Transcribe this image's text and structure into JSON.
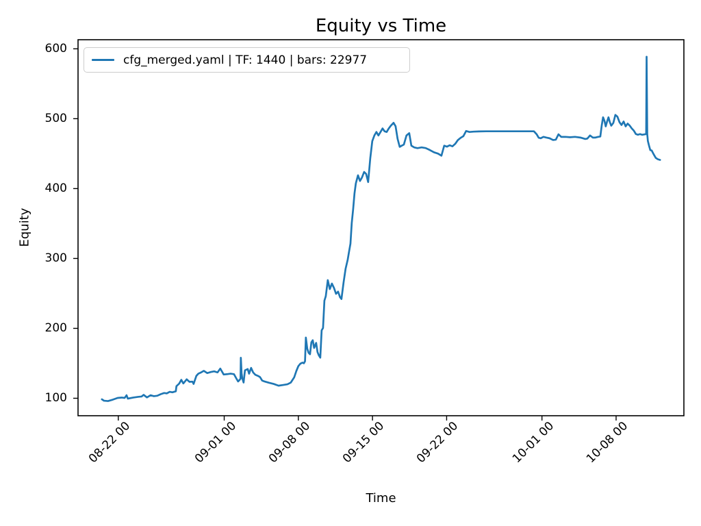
{
  "figure": {
    "title": "Equity vs Time"
  },
  "colors": {
    "line": "#1f77b4",
    "axis": "#000000",
    "text": "#000000",
    "legend_border": "#cccccc",
    "background": "#ffffff"
  },
  "chart_data": {
    "type": "line",
    "title": "Equity vs Time",
    "xlabel": "Time",
    "ylabel": "Equity",
    "x_unit": "days since 08-22 00:00",
    "xlim": [
      -3.8,
      53.4
    ],
    "ylim": [
      75,
      613
    ],
    "grid": false,
    "legend": {
      "location": "upper left",
      "entries": [
        {
          "label": "cfg_merged.yaml | TF: 1440 | bars: 22977",
          "color": "#1f77b4"
        }
      ]
    },
    "x_ticks": {
      "days": [
        0,
        10,
        17,
        24,
        31,
        40,
        47
      ],
      "labels": [
        "08-22 00",
        "09-01 00",
        "09-08 00",
        "09-15 00",
        "09-22 00",
        "10-01 00",
        "10-08 00"
      ]
    },
    "y_ticks": [
      100,
      200,
      300,
      400,
      500,
      600
    ],
    "series": [
      {
        "name": "cfg_merged.yaml | TF: 1440 | bars: 22977",
        "color": "#1f77b4",
        "line_width": 2.7,
        "points": [
          [
            -1.55,
            98.5
          ],
          [
            -1.35,
            96.5
          ],
          [
            -0.97,
            96
          ],
          [
            -0.52,
            98
          ],
          [
            -0.06,
            100.5
          ],
          [
            0.32,
            101
          ],
          [
            0.6,
            100.5
          ],
          [
            0.78,
            104.3
          ],
          [
            0.9,
            99.5
          ],
          [
            1.42,
            101
          ],
          [
            1.87,
            102
          ],
          [
            2.2,
            102.5
          ],
          [
            2.39,
            104.9
          ],
          [
            2.71,
            101.2
          ],
          [
            3.04,
            104.3
          ],
          [
            3.36,
            103
          ],
          [
            3.68,
            103.6
          ],
          [
            4.01,
            105.9
          ],
          [
            4.33,
            107.5
          ],
          [
            4.59,
            107
          ],
          [
            4.85,
            109.2
          ],
          [
            5.11,
            108.5
          ],
          [
            5.43,
            110
          ],
          [
            5.49,
            117.3
          ],
          [
            5.75,
            121
          ],
          [
            5.95,
            126.4
          ],
          [
            6.14,
            121.2
          ],
          [
            6.46,
            127.1
          ],
          [
            6.72,
            123.5
          ],
          [
            7,
            123.8
          ],
          [
            7.11,
            120.5
          ],
          [
            7.37,
            132
          ],
          [
            7.56,
            135.2
          ],
          [
            7.82,
            137
          ],
          [
            8.08,
            139.2
          ],
          [
            8.4,
            136
          ],
          [
            8.73,
            137.5
          ],
          [
            9.05,
            138.5
          ],
          [
            9.37,
            137
          ],
          [
            9.63,
            142.5
          ],
          [
            9.95,
            134
          ],
          [
            10.28,
            134.5
          ],
          [
            10.6,
            135.2
          ],
          [
            10.92,
            134.5
          ],
          [
            11.12,
            129
          ],
          [
            11.31,
            124
          ],
          [
            11.44,
            126
          ],
          [
            11.54,
            128
          ],
          [
            11.57,
            158
          ],
          [
            11.64,
            136
          ],
          [
            11.7,
            129
          ],
          [
            11.83,
            122.5
          ],
          [
            11.96,
            140
          ],
          [
            12.22,
            141.8
          ],
          [
            12.35,
            135.2
          ],
          [
            12.54,
            143.4
          ],
          [
            12.73,
            137
          ],
          [
            12.93,
            133.7
          ],
          [
            13.19,
            132
          ],
          [
            13.38,
            130.3
          ],
          [
            13.58,
            125.4
          ],
          [
            13.83,
            123.9
          ],
          [
            14.22,
            122.2
          ],
          [
            14.67,
            120.5
          ],
          [
            15.13,
            118
          ],
          [
            15.58,
            119
          ],
          [
            15.97,
            120
          ],
          [
            16.29,
            122.5
          ],
          [
            16.61,
            130
          ],
          [
            16.81,
            139
          ],
          [
            17,
            146
          ],
          [
            17.19,
            149.5
          ],
          [
            17.39,
            151
          ],
          [
            17.52,
            150
          ],
          [
            17.63,
            153
          ],
          [
            17.71,
            186.8
          ],
          [
            17.84,
            171
          ],
          [
            17.97,
            165
          ],
          [
            18.1,
            163
          ],
          [
            18.23,
            180
          ],
          [
            18.36,
            183
          ],
          [
            18.49,
            172
          ],
          [
            18.68,
            179.2
          ],
          [
            18.81,
            166
          ],
          [
            18.94,
            161.3
          ],
          [
            19.07,
            158.1
          ],
          [
            19.2,
            197.2
          ],
          [
            19.33,
            200.5
          ],
          [
            19.46,
            239.6
          ],
          [
            19.59,
            246
          ],
          [
            19.78,
            269
          ],
          [
            19.97,
            256.2
          ],
          [
            20.17,
            264.1
          ],
          [
            20.36,
            258
          ],
          [
            20.56,
            249.4
          ],
          [
            20.75,
            252.6
          ],
          [
            20.94,
            244.5
          ],
          [
            21.07,
            242
          ],
          [
            21.27,
            265.7
          ],
          [
            21.46,
            285.3
          ],
          [
            21.66,
            298.3
          ],
          [
            21.79,
            310
          ],
          [
            21.92,
            321.2
          ],
          [
            22.04,
            350.5
          ],
          [
            22.17,
            370
          ],
          [
            22.3,
            392.9
          ],
          [
            22.43,
            407.6
          ],
          [
            22.63,
            419
          ],
          [
            22.82,
            410.9
          ],
          [
            23.01,
            416
          ],
          [
            23.21,
            423.8
          ],
          [
            23.4,
            421
          ],
          [
            23.59,
            409.3
          ],
          [
            23.79,
            443.4
          ],
          [
            23.98,
            467.9
          ],
          [
            24.18,
            476.1
          ],
          [
            24.37,
            481
          ],
          [
            24.56,
            476
          ],
          [
            24.76,
            481
          ],
          [
            24.95,
            486
          ],
          [
            25.14,
            482
          ],
          [
            25.34,
            481
          ],
          [
            25.53,
            485.9
          ],
          [
            25.73,
            490
          ],
          [
            25.99,
            494.1
          ],
          [
            26.18,
            489.2
          ],
          [
            26.37,
            471.2
          ],
          [
            26.57,
            459.7
          ],
          [
            26.76,
            461.4
          ],
          [
            26.96,
            463
          ],
          [
            27.21,
            476
          ],
          [
            27.47,
            479.3
          ],
          [
            27.67,
            461.4
          ],
          [
            27.93,
            459
          ],
          [
            28.25,
            457.9
          ],
          [
            28.64,
            459
          ],
          [
            29.02,
            458
          ],
          [
            29.41,
            455.2
          ],
          [
            29.8,
            452
          ],
          [
            30.19,
            450
          ],
          [
            30.51,
            447.1
          ],
          [
            30.77,
            461.4
          ],
          [
            31.03,
            460
          ],
          [
            31.29,
            462
          ],
          [
            31.55,
            460.5
          ],
          [
            31.81,
            464
          ],
          [
            32.06,
            469.4
          ],
          [
            32.32,
            472.6
          ],
          [
            32.58,
            475
          ],
          [
            32.84,
            482.4
          ],
          [
            33.16,
            481
          ],
          [
            33.55,
            481.5
          ],
          [
            34.07,
            481.8
          ],
          [
            34.71,
            482
          ],
          [
            35.36,
            482
          ],
          [
            36.01,
            482
          ],
          [
            36.65,
            482
          ],
          [
            37.3,
            482
          ],
          [
            37.95,
            482
          ],
          [
            38.59,
            482
          ],
          [
            39.24,
            482
          ],
          [
            39.5,
            477.7
          ],
          [
            39.69,
            472.8
          ],
          [
            39.88,
            472
          ],
          [
            40.14,
            474
          ],
          [
            40.4,
            473
          ],
          [
            40.72,
            472
          ],
          [
            41.05,
            469.5
          ],
          [
            41.31,
            470
          ],
          [
            41.56,
            477.7
          ],
          [
            41.82,
            474
          ],
          [
            42.21,
            474
          ],
          [
            42.66,
            473.5
          ],
          [
            43.12,
            474
          ],
          [
            43.63,
            473
          ],
          [
            44.09,
            471
          ],
          [
            44.28,
            471.5
          ],
          [
            44.54,
            476
          ],
          [
            44.8,
            473
          ],
          [
            45.05,
            473
          ],
          [
            45.31,
            474
          ],
          [
            45.51,
            474.5
          ],
          [
            45.64,
            490
          ],
          [
            45.77,
            502
          ],
          [
            45.9,
            497
          ],
          [
            46.02,
            489
          ],
          [
            46.15,
            496
          ],
          [
            46.28,
            502
          ],
          [
            46.41,
            495
          ],
          [
            46.54,
            490
          ],
          [
            46.74,
            494
          ],
          [
            46.93,
            505.4
          ],
          [
            47.12,
            503
          ],
          [
            47.32,
            495
          ],
          [
            47.51,
            491
          ],
          [
            47.71,
            496
          ],
          [
            47.9,
            489
          ],
          [
            48.09,
            493
          ],
          [
            48.29,
            490
          ],
          [
            48.48,
            486
          ],
          [
            48.67,
            483
          ],
          [
            48.87,
            478
          ],
          [
            49.06,
            477
          ],
          [
            49.26,
            478
          ],
          [
            49.45,
            477
          ],
          [
            49.64,
            477.5
          ],
          [
            49.84,
            478
          ],
          [
            49.88,
            588.6
          ],
          [
            49.94,
            478
          ],
          [
            50,
            468
          ],
          [
            50.1,
            462
          ],
          [
            50.23,
            455
          ],
          [
            50.36,
            454.5
          ],
          [
            50.55,
            449
          ],
          [
            50.74,
            444
          ],
          [
            50.94,
            442
          ],
          [
            51.15,
            441
          ]
        ]
      }
    ]
  }
}
